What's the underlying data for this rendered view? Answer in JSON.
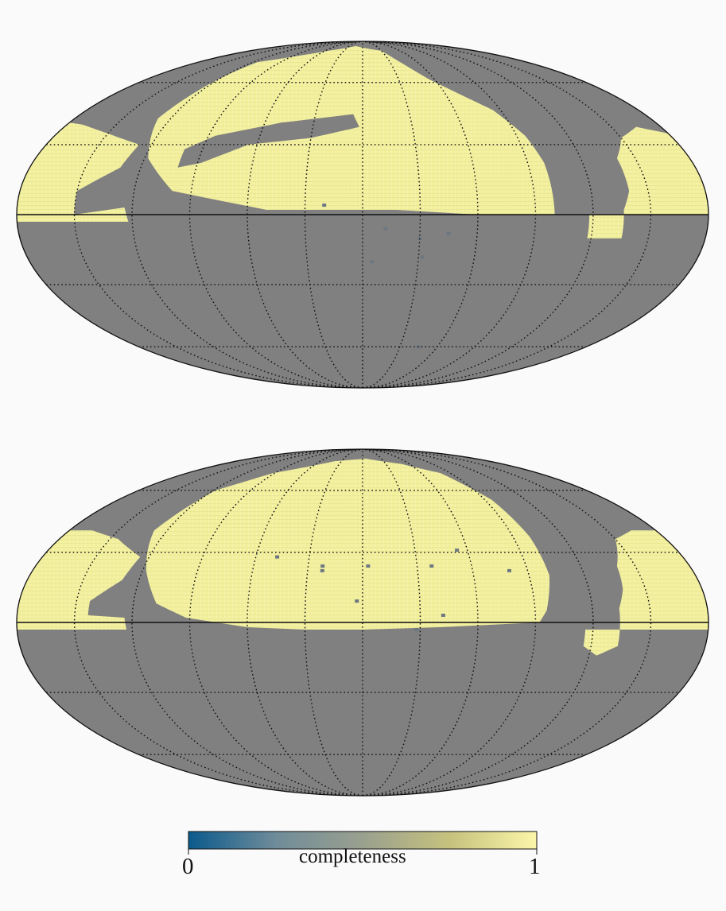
{
  "figure": {
    "maps": [
      {
        "name": "top-mollweide-map",
        "footprints": [
          {
            "name": "ngc-cap",
            "polygons": [
              [
                [
                  -115,
                  72
                ],
                [
                  -55,
                  80
                ],
                [
                  -15,
                  84
                ],
                [
                  30,
                  80
                ],
                [
                  55,
                  62
                ],
                [
                  85,
                  46
                ],
                [
                  95,
                  34
                ],
                [
                  99,
                  22
                ],
                [
                  100,
                  0
                ],
                [
                  60,
                  0
                ],
                [
                  18,
                  2
                ],
                [
                  -50,
                  2
                ],
                [
                  -100,
                  10
                ],
                [
                  -118,
                  24
                ],
                [
                  -128,
                  42
                ],
                [
                  -121,
                  60
                ]
              ]
            ],
            "holes": [
              [
                [
                  -100,
                  28
                ],
                [
                  -86,
                  34
                ],
                [
                  -50,
                  40
                ],
                [
                  -6,
                  44
                ],
                [
                  -2,
                  38
                ],
                [
                  -30,
                  33
                ],
                [
                  -65,
                  30
                ],
                [
                  -88,
                  22
                ],
                [
                  -100,
                  20
                ]
              ]
            ]
          },
          {
            "name": "sgc-east",
            "polygons": [
              [
                [
                  180,
                  0
                ],
                [
                  180,
                  35
                ],
                [
                  165,
                  38
                ],
                [
                  150,
                  33
                ],
                [
                  140,
                  24
                ],
                [
                  140,
                  10
                ],
                [
                  136,
                  2
                ],
                [
                  136,
                  -10
                ],
                [
                  118,
                  -10
                ],
                [
                  118,
                  0
                ]
              ]
            ],
            "holes": []
          },
          {
            "name": "sgc-west",
            "polygons": [
              [
                [
                  -180,
                  -3
                ],
                [
                  -180,
                  40
                ],
                [
                  -170,
                  39
                ],
                [
                  -150,
                  35
                ],
                [
                  -127,
                  30
                ],
                [
                  -131,
                  20
                ],
                [
                  -150,
                  10
                ],
                [
                  -150,
                  0
                ],
                [
                  -124,
                  3
                ],
                [
                  -122,
                  -3
                ]
              ]
            ],
            "holes": []
          }
        ],
        "masked_spots": [
          [
            -20,
            4
          ],
          [
            30,
            -10
          ],
          [
            45,
            -60
          ],
          [
            5,
            -20
          ],
          [
            12,
            -6
          ],
          [
            45,
            -8
          ],
          [
            32,
            -18
          ]
        ]
      },
      {
        "name": "bottom-mollweide-map",
        "footprints": [
          {
            "name": "ngc-cap",
            "polygons": [
              [
                [
                  -118,
                  60
                ],
                [
                  -92,
                  70
                ],
                [
                  -40,
                  78
                ],
                [
                  5,
                  80
                ],
                [
                  50,
                  76
                ],
                [
                  80,
                  70
                ],
                [
                  95,
                  55
                ],
                [
                  100,
                  37
                ],
                [
                  101,
                  20
                ],
                [
                  96,
                  5
                ],
                [
                  92,
                  0
                ],
                [
                  40,
                  -2
                ],
                [
                  0,
                  -3
                ],
                [
                  -30,
                  -3
                ],
                [
                  -60,
                  -2
                ],
                [
                  -92,
                  2
                ],
                [
                  -108,
                  8
                ],
                [
                  -118,
                  22
                ],
                [
                  -128,
                  40
                ]
              ]
            ],
            "holes": []
          },
          {
            "name": "sgc-east",
            "polygons": [
              [
                [
                  180,
                  -3
                ],
                [
                  180,
                  40
                ],
                [
                  165,
                  40
                ],
                [
                  150,
                  36
                ],
                [
                  140,
                  24
                ],
                [
                  138,
                  14
                ],
                [
                  134,
                  6
                ],
                [
                  134,
                  -10
                ],
                [
                  124,
                  -14
                ],
                [
                  116,
                  -10
                ],
                [
                  116,
                  -3
                ]
              ]
            ],
            "holes": []
          },
          {
            "name": "sgc-west",
            "polygons": [
              [
                [
                  -180,
                  -3
                ],
                [
                  -180,
                  40
                ],
                [
                  -166,
                  40
                ],
                [
                  -145,
                  36
                ],
                [
                  -125,
                  28
                ],
                [
                  -129,
                  18
                ],
                [
                  -143,
                  9
                ],
                [
                  -143,
                  3
                ],
                [
                  -124,
                  2
                ],
                [
                  -123,
                  -3
                ]
              ]
            ],
            "holes": []
          }
        ],
        "masked_spots": [
          [
            -22,
            22
          ],
          [
            3,
            24
          ],
          [
            -3,
            9
          ],
          [
            38,
            24
          ],
          [
            54,
            31
          ],
          [
            42,
            3
          ],
          [
            28,
            -3
          ],
          [
            -22,
            24
          ],
          [
            -48,
            28
          ],
          [
            80,
            22
          ]
        ]
      }
    ]
  },
  "colorbar": {
    "min_label": "0",
    "max_label": "1",
    "title": "completeness",
    "stops": [
      "#0b5a8c",
      "#6f8c9a",
      "#9aa08e",
      "#c6c27e",
      "#fbf6a9"
    ]
  },
  "colors": {
    "footprint": "#f2ef9d",
    "background_sky": "#808080",
    "masked": "#6d7781"
  }
}
